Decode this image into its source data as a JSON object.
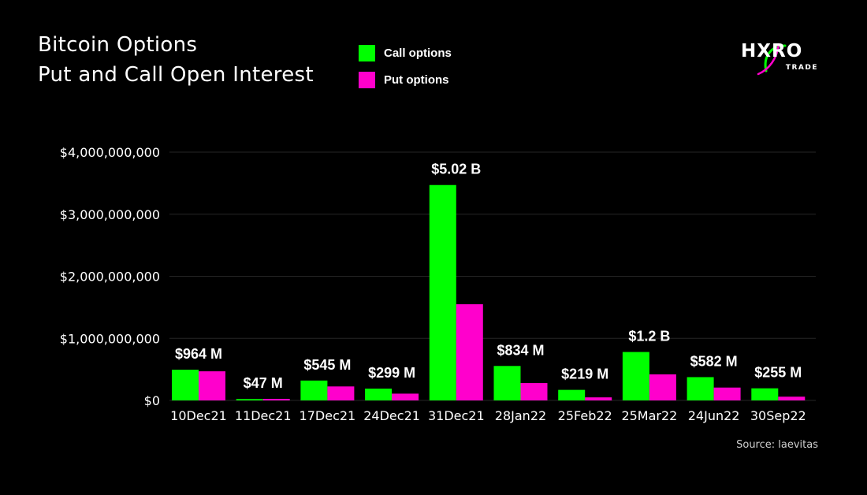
{
  "title": {
    "line1": "Bitcoin Options",
    "line2": "Put and Call Open Interest"
  },
  "legend": [
    {
      "label": "Call options",
      "color": "#00ff00"
    },
    {
      "label": "Put options",
      "color": "#ff00cc"
    }
  ],
  "logo": {
    "main": "HXRO",
    "sub": "TRADE",
    "accent_color": "#00ff00",
    "accent_color2": "#ff00cc"
  },
  "source": "Source: laevitas",
  "chart_data": {
    "type": "bar",
    "title": "Bitcoin Options Put and Call Open Interest",
    "xlabel": "",
    "ylabel": "",
    "ylim": [
      0,
      4000000000
    ],
    "yticks": [
      0,
      1000000000,
      2000000000,
      3000000000,
      4000000000
    ],
    "ytick_labels": [
      "$0",
      "$1,000,000,000",
      "$2,000,000,000",
      "$3,000,000,000",
      "$4,000,000,000"
    ],
    "grid": true,
    "categories": [
      "10Dec21",
      "11Dec21",
      "17Dec21",
      "24Dec21",
      "31Dec21",
      "28Jan22",
      "25Feb22",
      "25Mar22",
      "24Jun22",
      "30Sep22"
    ],
    "series": [
      {
        "name": "Call options",
        "color": "#00ff00",
        "values": [
          495000000,
          22000000,
          320000000,
          190000000,
          3470000000,
          555000000,
          170000000,
          780000000,
          375000000,
          195000000
        ]
      },
      {
        "name": "Put options",
        "color": "#ff00cc",
        "values": [
          469000000,
          25000000,
          225000000,
          109000000,
          1550000000,
          279000000,
          49000000,
          420000000,
          207000000,
          60000000
        ]
      }
    ],
    "total_labels": [
      "$964 M",
      "$47 M",
      "$545 M",
      "$299 M",
      "$5.02 B",
      "$834 M",
      "$219 M",
      "$1.2 B",
      "$582 M",
      "$255 M"
    ]
  }
}
